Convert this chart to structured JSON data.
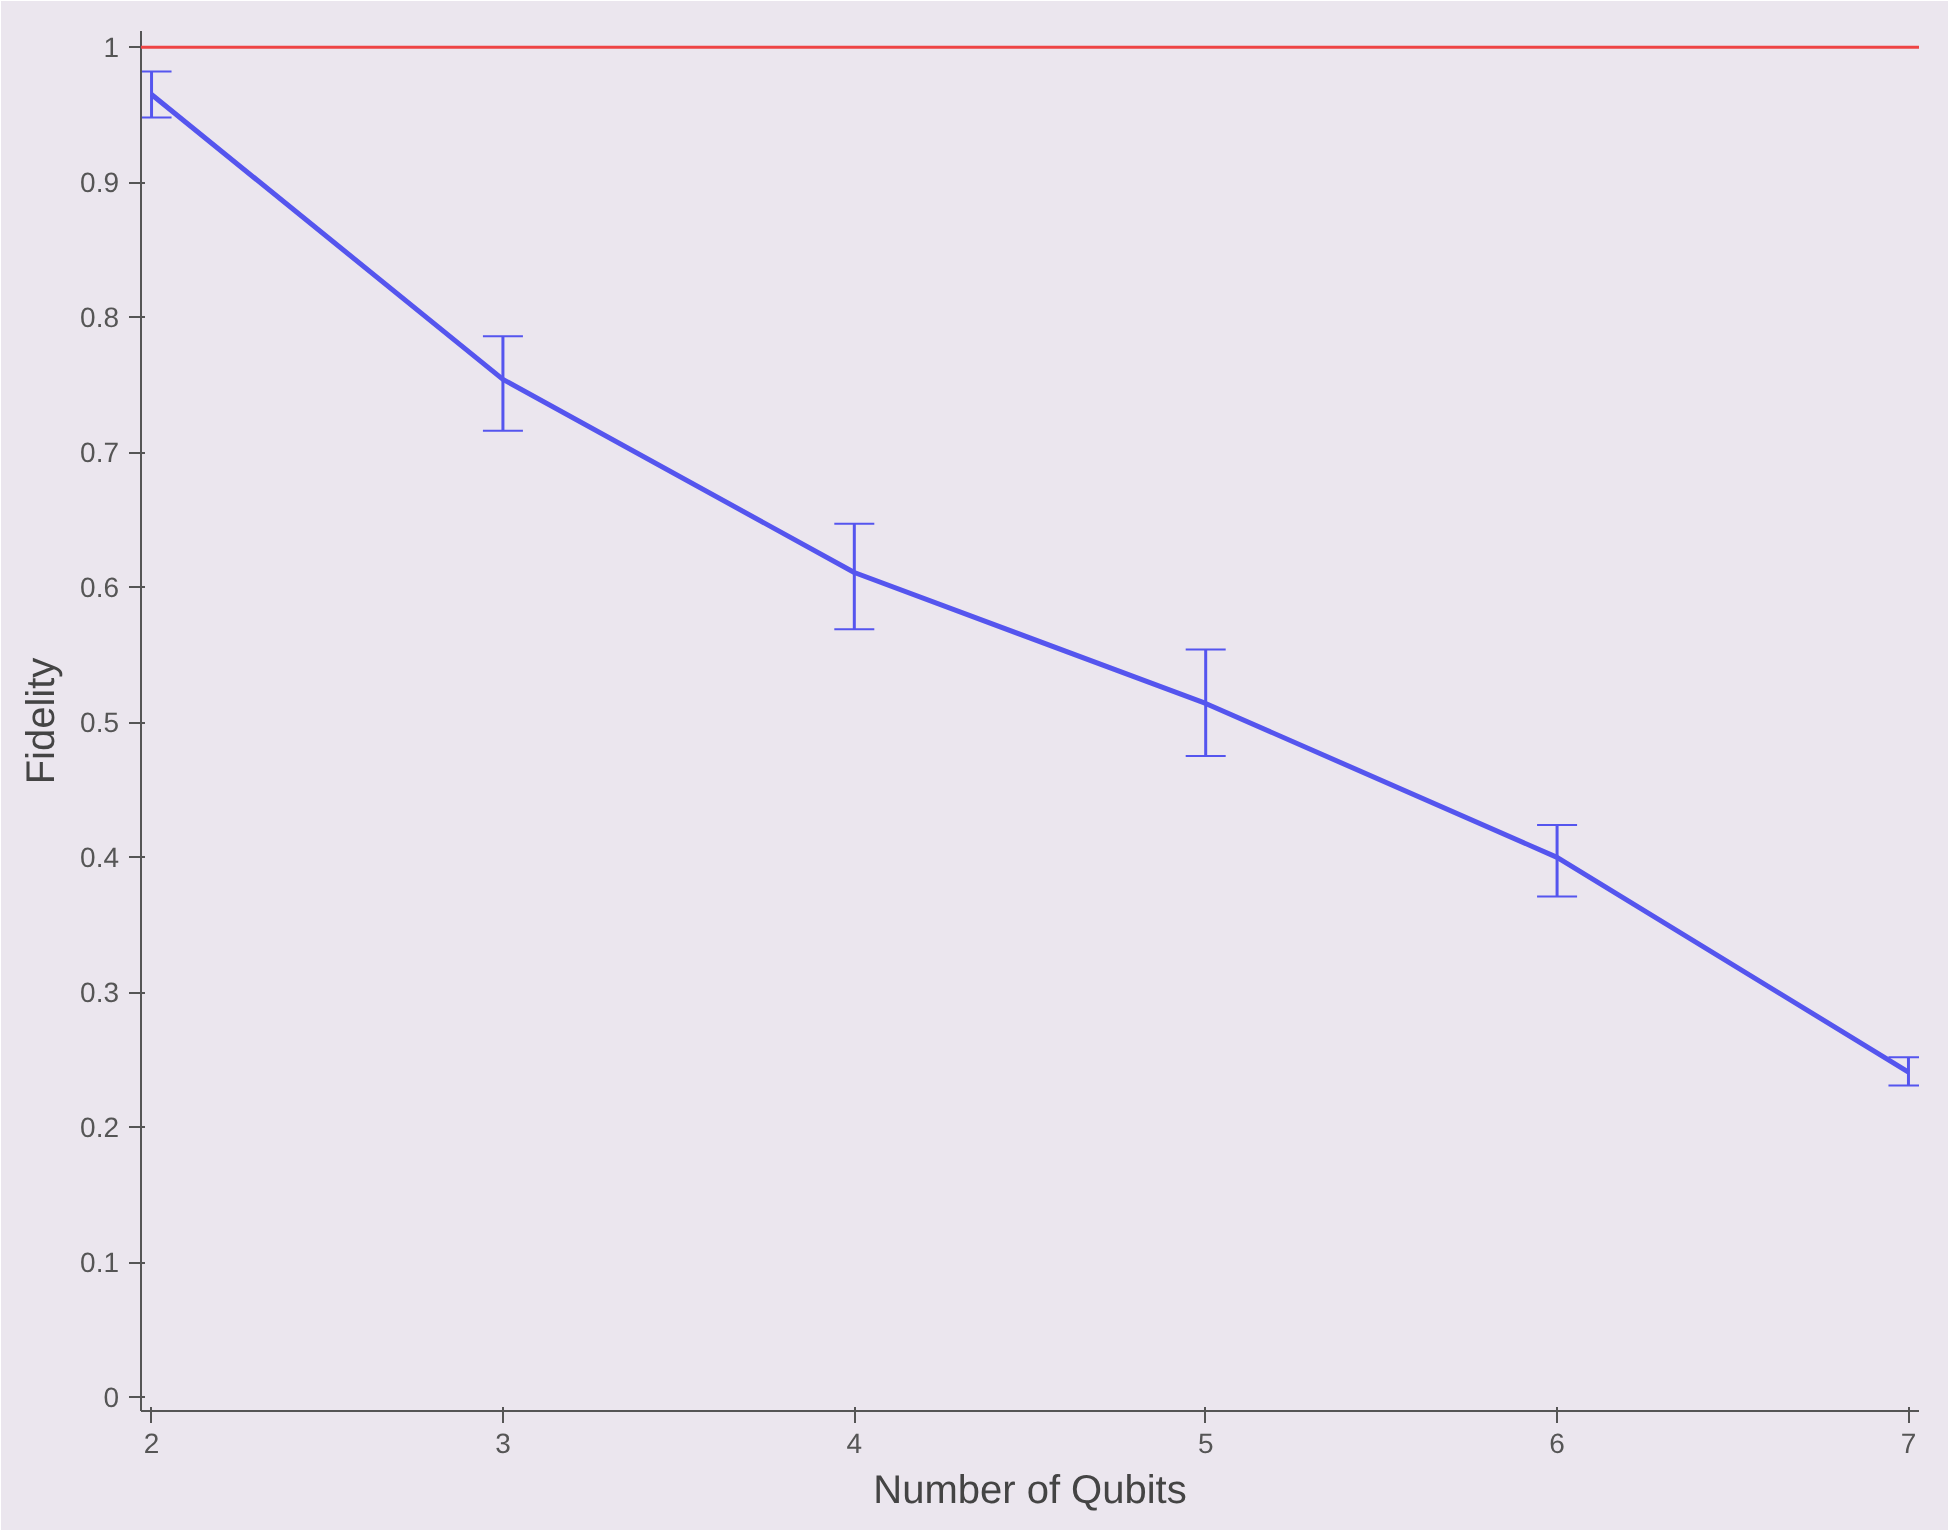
{
  "chart_data": {
    "type": "line",
    "xlabel": "Number of Qubits",
    "ylabel": "Fidelity",
    "x": [
      2,
      3,
      4,
      5,
      6,
      7
    ],
    "series": [
      {
        "color": "#5555ee",
        "values": [
          0.965,
          0.754,
          0.611,
          0.514,
          0.4,
          0.241
        ],
        "errors": [
          [
            0.948,
            0.982
          ],
          [
            0.716,
            0.786
          ],
          [
            0.569,
            0.647
          ],
          [
            0.475,
            0.554
          ],
          [
            0.371,
            0.424
          ],
          [
            0.231,
            0.252
          ]
        ]
      }
    ],
    "xlim": [
      1.97,
      7.03
    ],
    "ylim": [
      -0.01,
      1.012
    ],
    "xticks": [
      2,
      3,
      4,
      5,
      6,
      7
    ],
    "yticks": [
      0,
      0.1,
      0.2,
      0.3,
      0.4,
      0.5,
      0.6,
      0.7,
      0.8,
      0.9,
      1
    ],
    "ref_lines": [
      {
        "axis": "y",
        "value": 1,
        "color": "#ee4444"
      }
    ],
    "grid": false,
    "marker": "none",
    "line_style": "solid"
  }
}
